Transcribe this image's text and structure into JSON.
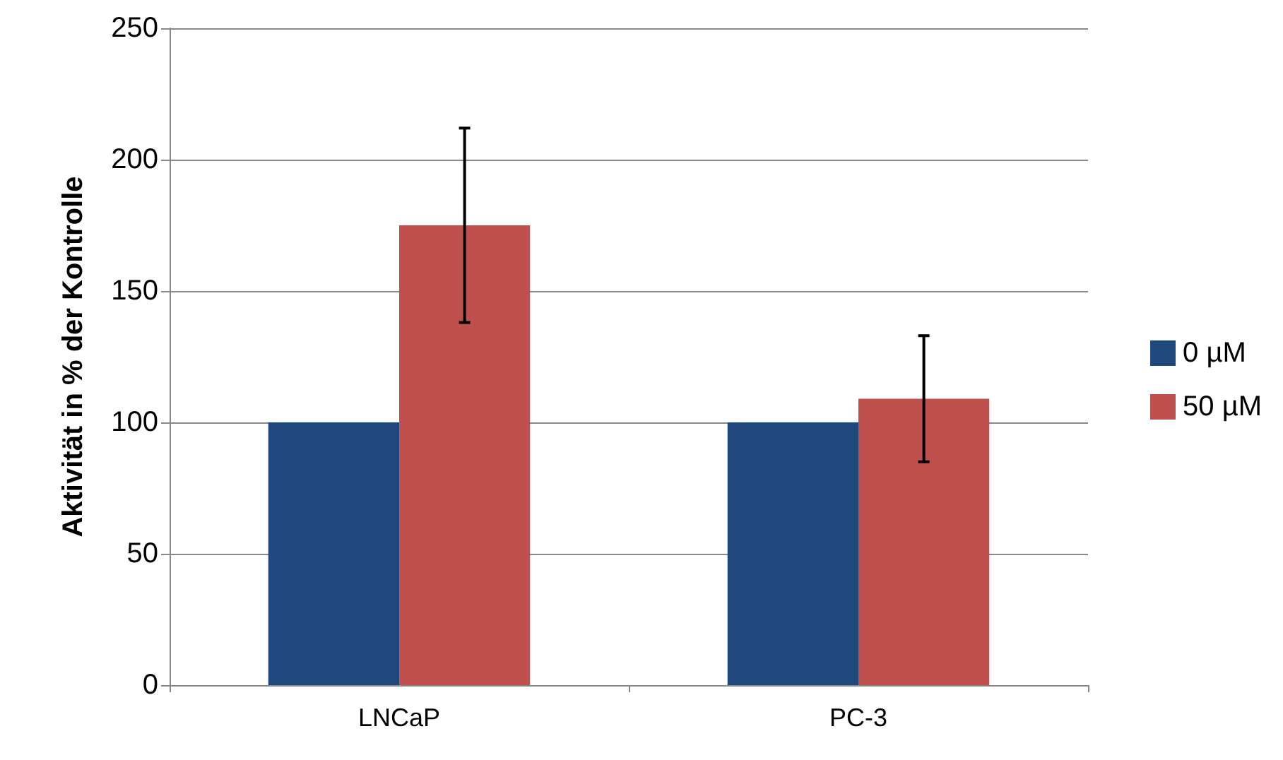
{
  "chart_data": {
    "type": "bar",
    "ylabel": "Aktivität in % der Kontrolle",
    "categories": [
      "LNCaP",
      "PC-3"
    ],
    "series": [
      {
        "name": "0 µM",
        "color": "#1f497d",
        "values": [
          100,
          100
        ]
      },
      {
        "name": "50 µM",
        "color": "#c0504d",
        "values": [
          175,
          109
        ],
        "errors": [
          37,
          24
        ]
      }
    ],
    "ylim": [
      0,
      250
    ],
    "yticks": [
      0,
      50,
      100,
      150,
      200,
      250
    ],
    "grid": "y",
    "legend": "right"
  }
}
